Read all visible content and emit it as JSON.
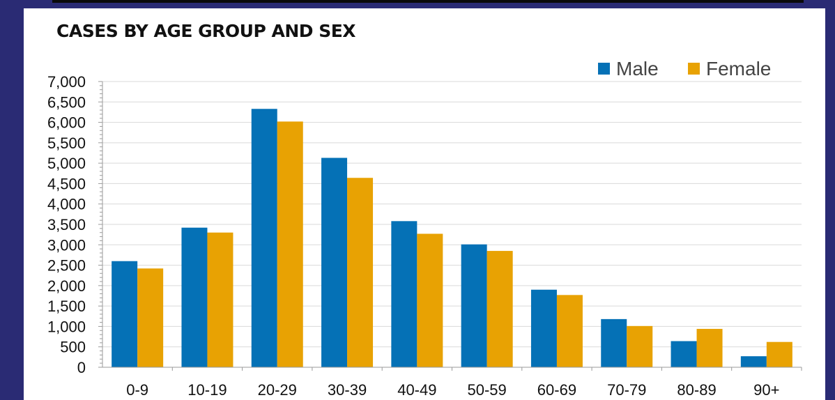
{
  "colors": {
    "background": "#2a2b74",
    "male": "#0571b6",
    "female": "#e8a203"
  },
  "chart_data": {
    "type": "bar",
    "title": "CASES BY AGE GROUP AND SEX",
    "categories": [
      "0-9",
      "10-19",
      "20-29",
      "30-39",
      "40-49",
      "50-59",
      "60-69",
      "70-79",
      "80-89",
      "90+"
    ],
    "series": [
      {
        "name": "Male",
        "color": "#0571b6",
        "values": [
          2600,
          3420,
          6330,
          5130,
          3580,
          3010,
          1900,
          1180,
          640,
          270
        ]
      },
      {
        "name": "Female",
        "color": "#e8a203",
        "values": [
          2420,
          3300,
          6020,
          4640,
          3270,
          2850,
          1770,
          1010,
          940,
          620
        ]
      }
    ],
    "y_ticks": [
      "0",
      "500",
      "1,000",
      "1,500",
      "2,000",
      "2,500",
      "3,000",
      "3,500",
      "4,000",
      "4,500",
      "5,000",
      "5,500",
      "6,000",
      "6,500",
      "7,000"
    ],
    "ylim": [
      0,
      7000
    ],
    "grid": true,
    "legend_position": "top-right"
  }
}
